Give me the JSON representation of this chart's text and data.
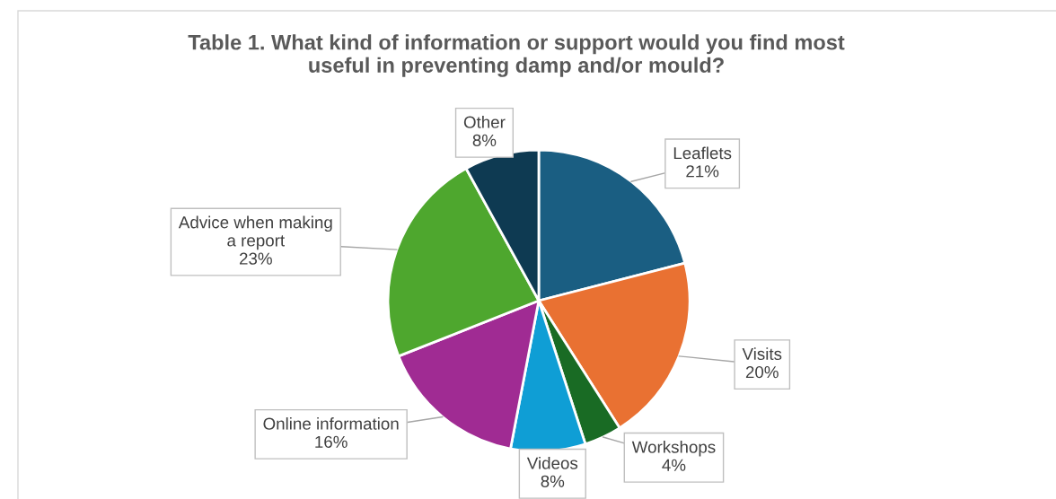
{
  "chart_data": {
    "type": "pie",
    "title": "Table 1. What kind of information or support would you find most\nuseful in preventing damp and/or mould?",
    "categories": [
      "Leaflets",
      "Visits",
      "Workshops",
      "Videos",
      "Online information",
      "Advice when making\na report",
      "Other"
    ],
    "values": [
      21,
      20,
      4,
      8,
      16,
      23,
      8
    ],
    "value_labels": [
      "21%",
      "20%",
      "4%",
      "8%",
      "16%",
      "23%",
      "8%"
    ],
    "colors": [
      "#1a5e82",
      "#e97132",
      "#196b24",
      "#0f9ed5",
      "#a02b93",
      "#4ea72e",
      "#0e3a52"
    ],
    "legend": false
  }
}
